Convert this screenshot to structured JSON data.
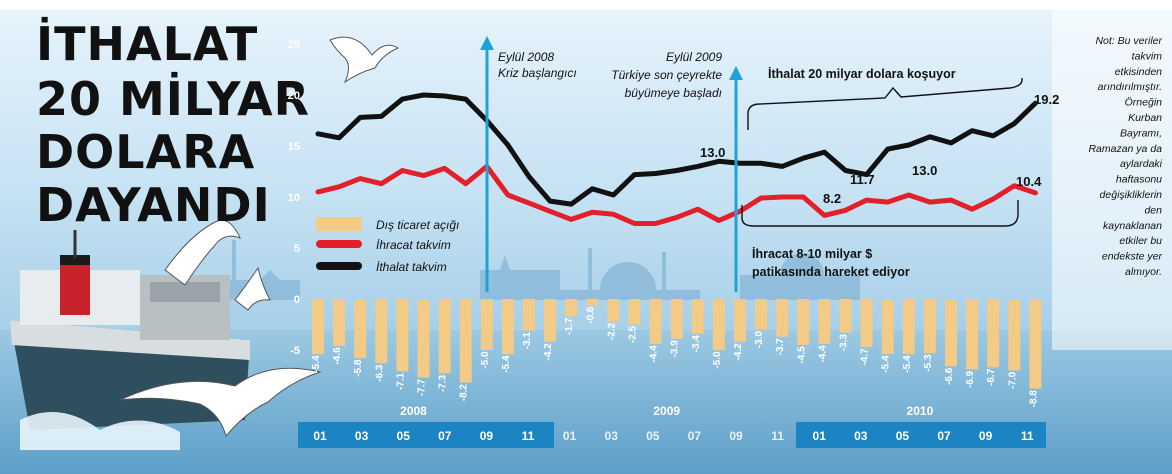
{
  "title_lines": [
    "İTHALAT",
    "20 MİLYAR",
    "DOLARA",
    "DAYANDI"
  ],
  "note_lines": [
    "Not: Bu veriler",
    "takvim",
    "etkisinden",
    "arındırılmıştır.",
    "Örneğin",
    "Kurban",
    "Bayramı,",
    "Ramazan ya da",
    "aylardaki",
    "haftasonu",
    "değişikliklerin",
    "den",
    "kaynaklanan",
    "etkiler bu",
    "endekste yer",
    "almıyor."
  ],
  "annotations": {
    "crisis": [
      "Eylül 2008",
      "Kriz başlangıcı"
    ],
    "recovery": [
      "Eylül 2009",
      "Türkiye son çeyrekte",
      "büyümeye başladı"
    ],
    "import_callout": "İthalat 20 milyar dolara koşuyor",
    "export_callout": [
      "İhracat 8-10 milyar $",
      "patikasında hareket ediyor"
    ]
  },
  "value_callouts": [
    "13.0",
    "19.2",
    "11.7",
    "13.0",
    "8.2",
    "10.4"
  ],
  "colors": {
    "import_line": "#111111",
    "export_line": "#e3202a",
    "deficit_bar": "#f3cb86",
    "arrow": "#1ea3d8",
    "month_band": "#1d84c4",
    "sky_top": "#c9e4f5",
    "sea": "#8fc1dd"
  },
  "chart_data": {
    "type": "line",
    "categories": [
      "01",
      "02",
      "03",
      "04",
      "05",
      "06",
      "07",
      "08",
      "09",
      "10",
      "11",
      "12",
      "01",
      "02",
      "03",
      "04",
      "05",
      "06",
      "07",
      "08",
      "09",
      "10",
      "11",
      "12",
      "01",
      "02",
      "03",
      "04",
      "05",
      "06",
      "07",
      "08",
      "09",
      "10",
      "11"
    ],
    "year_labels": [
      "2008",
      "2009",
      "2010"
    ],
    "month_tick_labels": [
      "01",
      "03",
      "05",
      "07",
      "09",
      "11",
      "01",
      "03",
      "05",
      "07",
      "09",
      "11",
      "01",
      "03",
      "05",
      "07",
      "09",
      "11"
    ],
    "y_ticks": [
      "25",
      "20",
      "15",
      "10",
      "5",
      "0",
      "-5"
    ],
    "ylim": [
      -10,
      25
    ],
    "grid": false,
    "legend_position": "middle-left",
    "series": [
      {
        "name": "İthalat takvim",
        "type": "line",
        "values": [
          16.2,
          15.8,
          17.8,
          17.9,
          19.6,
          20.0,
          19.9,
          19.6,
          17.5,
          15.1,
          12.0,
          9.6,
          9.3,
          10.8,
          10.2,
          12.2,
          12.3,
          12.6,
          13.0,
          13.5,
          13.3,
          13.3,
          13.0,
          13.8,
          14.4,
          12.6,
          12.2,
          14.7,
          15.1,
          15.9,
          15.3,
          16.5,
          16.0,
          17.2,
          19.2
        ]
      },
      {
        "name": "İhracat takvim",
        "type": "line",
        "values": [
          10.5,
          11.0,
          11.8,
          11.3,
          12.6,
          12.1,
          12.8,
          11.3,
          13.0,
          10.2,
          9.4,
          8.6,
          7.8,
          8.5,
          8.3,
          7.4,
          7.4,
          8.0,
          8.8,
          7.7,
          8.6,
          9.9,
          10.0,
          10.0,
          8.2,
          8.7,
          9.7,
          9.5,
          10.2,
          9.5,
          9.7,
          8.8,
          9.8,
          11.1,
          10.4
        ]
      },
      {
        "name": "Dış ticaret açığı",
        "type": "bar",
        "values": [
          -5.4,
          -4.6,
          -5.8,
          -6.3,
          -7.1,
          -7.7,
          -7.3,
          -8.2,
          -5.0,
          -5.4,
          -3.1,
          -4.2,
          -1.7,
          -0.6,
          -2.2,
          -2.5,
          -4.4,
          -3.9,
          -3.4,
          -5.0,
          -4.2,
          -3.0,
          -3.7,
          -4.5,
          -4.4,
          -3.3,
          -4.7,
          -5.4,
          -5.4,
          -5.3,
          -6.6,
          -6.9,
          -6.7,
          -7.0,
          -8.8
        ]
      }
    ]
  }
}
